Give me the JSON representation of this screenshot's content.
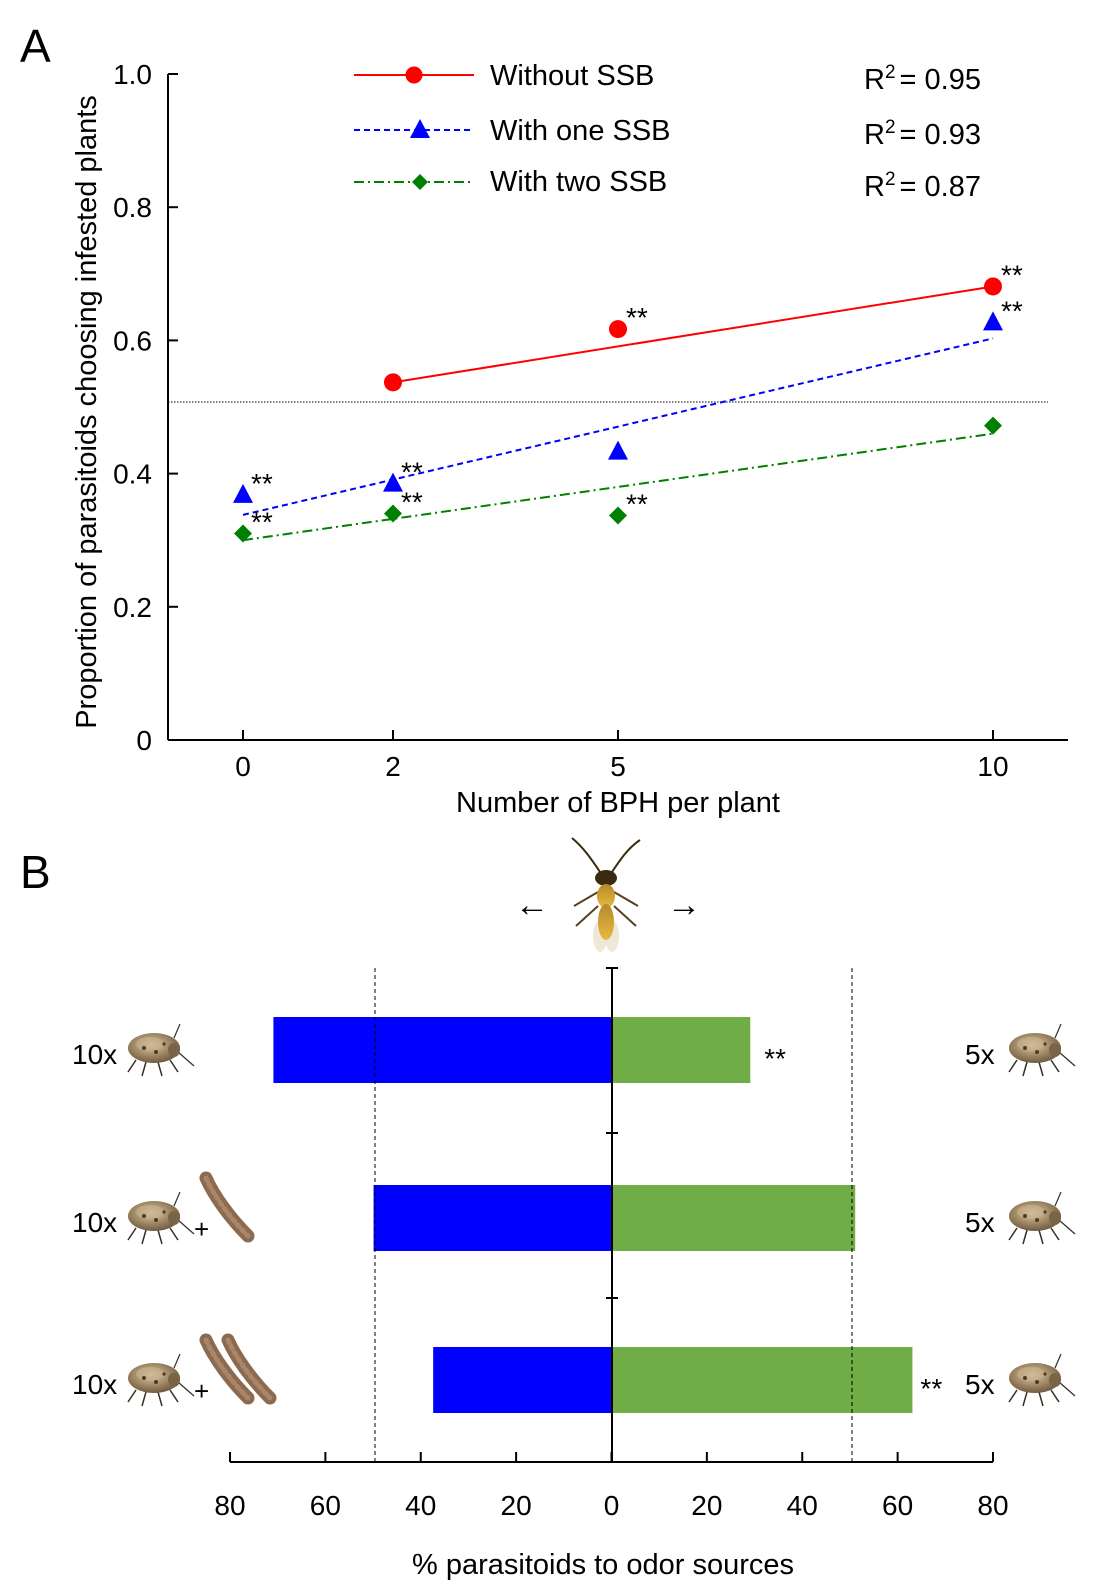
{
  "panel_a_letter": "A",
  "panel_b_letter": "B",
  "chart_data": [
    {
      "type": "line",
      "panel": "A",
      "xlabel": "Number of BPH per plant",
      "ylabel": "Proportion of parasitoids choosing infested plants",
      "x_ticks": [
        "0",
        "2",
        "5",
        "10"
      ],
      "y_ticks": [
        "0",
        "0.2",
        "0.4",
        "0.6",
        "0.8",
        "1.0"
      ],
      "ylim": [
        0,
        1.0
      ],
      "reference_line_y": 0.5,
      "series": [
        {
          "name": "Without SSB",
          "color": "#ff0000",
          "marker": "circle",
          "line_style": "solid",
          "x": [
            2,
            5,
            10
          ],
          "y": [
            0.537,
            0.617,
            0.681
          ],
          "signif": [
            "",
            "**",
            "**"
          ],
          "fit": [
            [
              2,
              0.537
            ],
            [
              10,
              0.681
            ]
          ],
          "r2_label": "R",
          "r2_sup": "2",
          "r2_value": "= 0.95"
        },
        {
          "name": "With one SSB",
          "color": "#0000ff",
          "marker": "triangle",
          "line_style": "dashed",
          "x": [
            0,
            2,
            5,
            10
          ],
          "y": [
            0.368,
            0.385,
            0.433,
            0.627
          ],
          "signif": [
            "**",
            "**",
            "",
            "**"
          ],
          "fit": [
            [
              0,
              0.338
            ],
            [
              10,
              0.603
            ]
          ],
          "r2_label": "R",
          "r2_sup": "2",
          "r2_value": "= 0.93"
        },
        {
          "name": "With two SSB",
          "color": "#008000",
          "marker": "diamond",
          "line_style": "dashdot",
          "x": [
            0,
            2,
            5,
            10
          ],
          "y": [
            0.31,
            0.34,
            0.337,
            0.472
          ],
          "signif": [
            "**",
            "**",
            "**",
            ""
          ],
          "fit": [
            [
              0,
              0.3
            ],
            [
              10,
              0.46
            ]
          ],
          "r2_label": "R",
          "r2_sup": "2",
          "r2_value": "= 0.87"
        }
      ]
    },
    {
      "type": "bar",
      "panel": "B",
      "orientation": "horizontal",
      "xlabel": "% parasitoids to odor sources",
      "x_ticks": [
        "80",
        "60",
        "40",
        "20",
        "0",
        "20",
        "40",
        "60",
        "80"
      ],
      "xlim": [
        -80,
        80
      ],
      "reference_lines": [
        -50,
        50
      ],
      "arrow_left": "←",
      "arrow_right": "→",
      "series": [
        {
          "side": "left",
          "color": "#0000ff",
          "values": [
            71,
            50,
            37.5
          ]
        },
        {
          "side": "right",
          "color": "#70ad47",
          "values": [
            29,
            51,
            63
          ]
        }
      ],
      "rows": [
        {
          "left_label": "10x",
          "left_plus": "",
          "ssb_count": 0,
          "right_label": "5x",
          "left_signif": "",
          "right_signif": "**"
        },
        {
          "left_label": "10x",
          "left_plus": "+",
          "ssb_count": 1,
          "right_label": "5x",
          "left_signif": "",
          "right_signif": ""
        },
        {
          "left_label": "10x",
          "left_plus": "+",
          "ssb_count": 2,
          "right_label": "5x",
          "left_signif": "**",
          "right_signif": ""
        }
      ]
    }
  ]
}
